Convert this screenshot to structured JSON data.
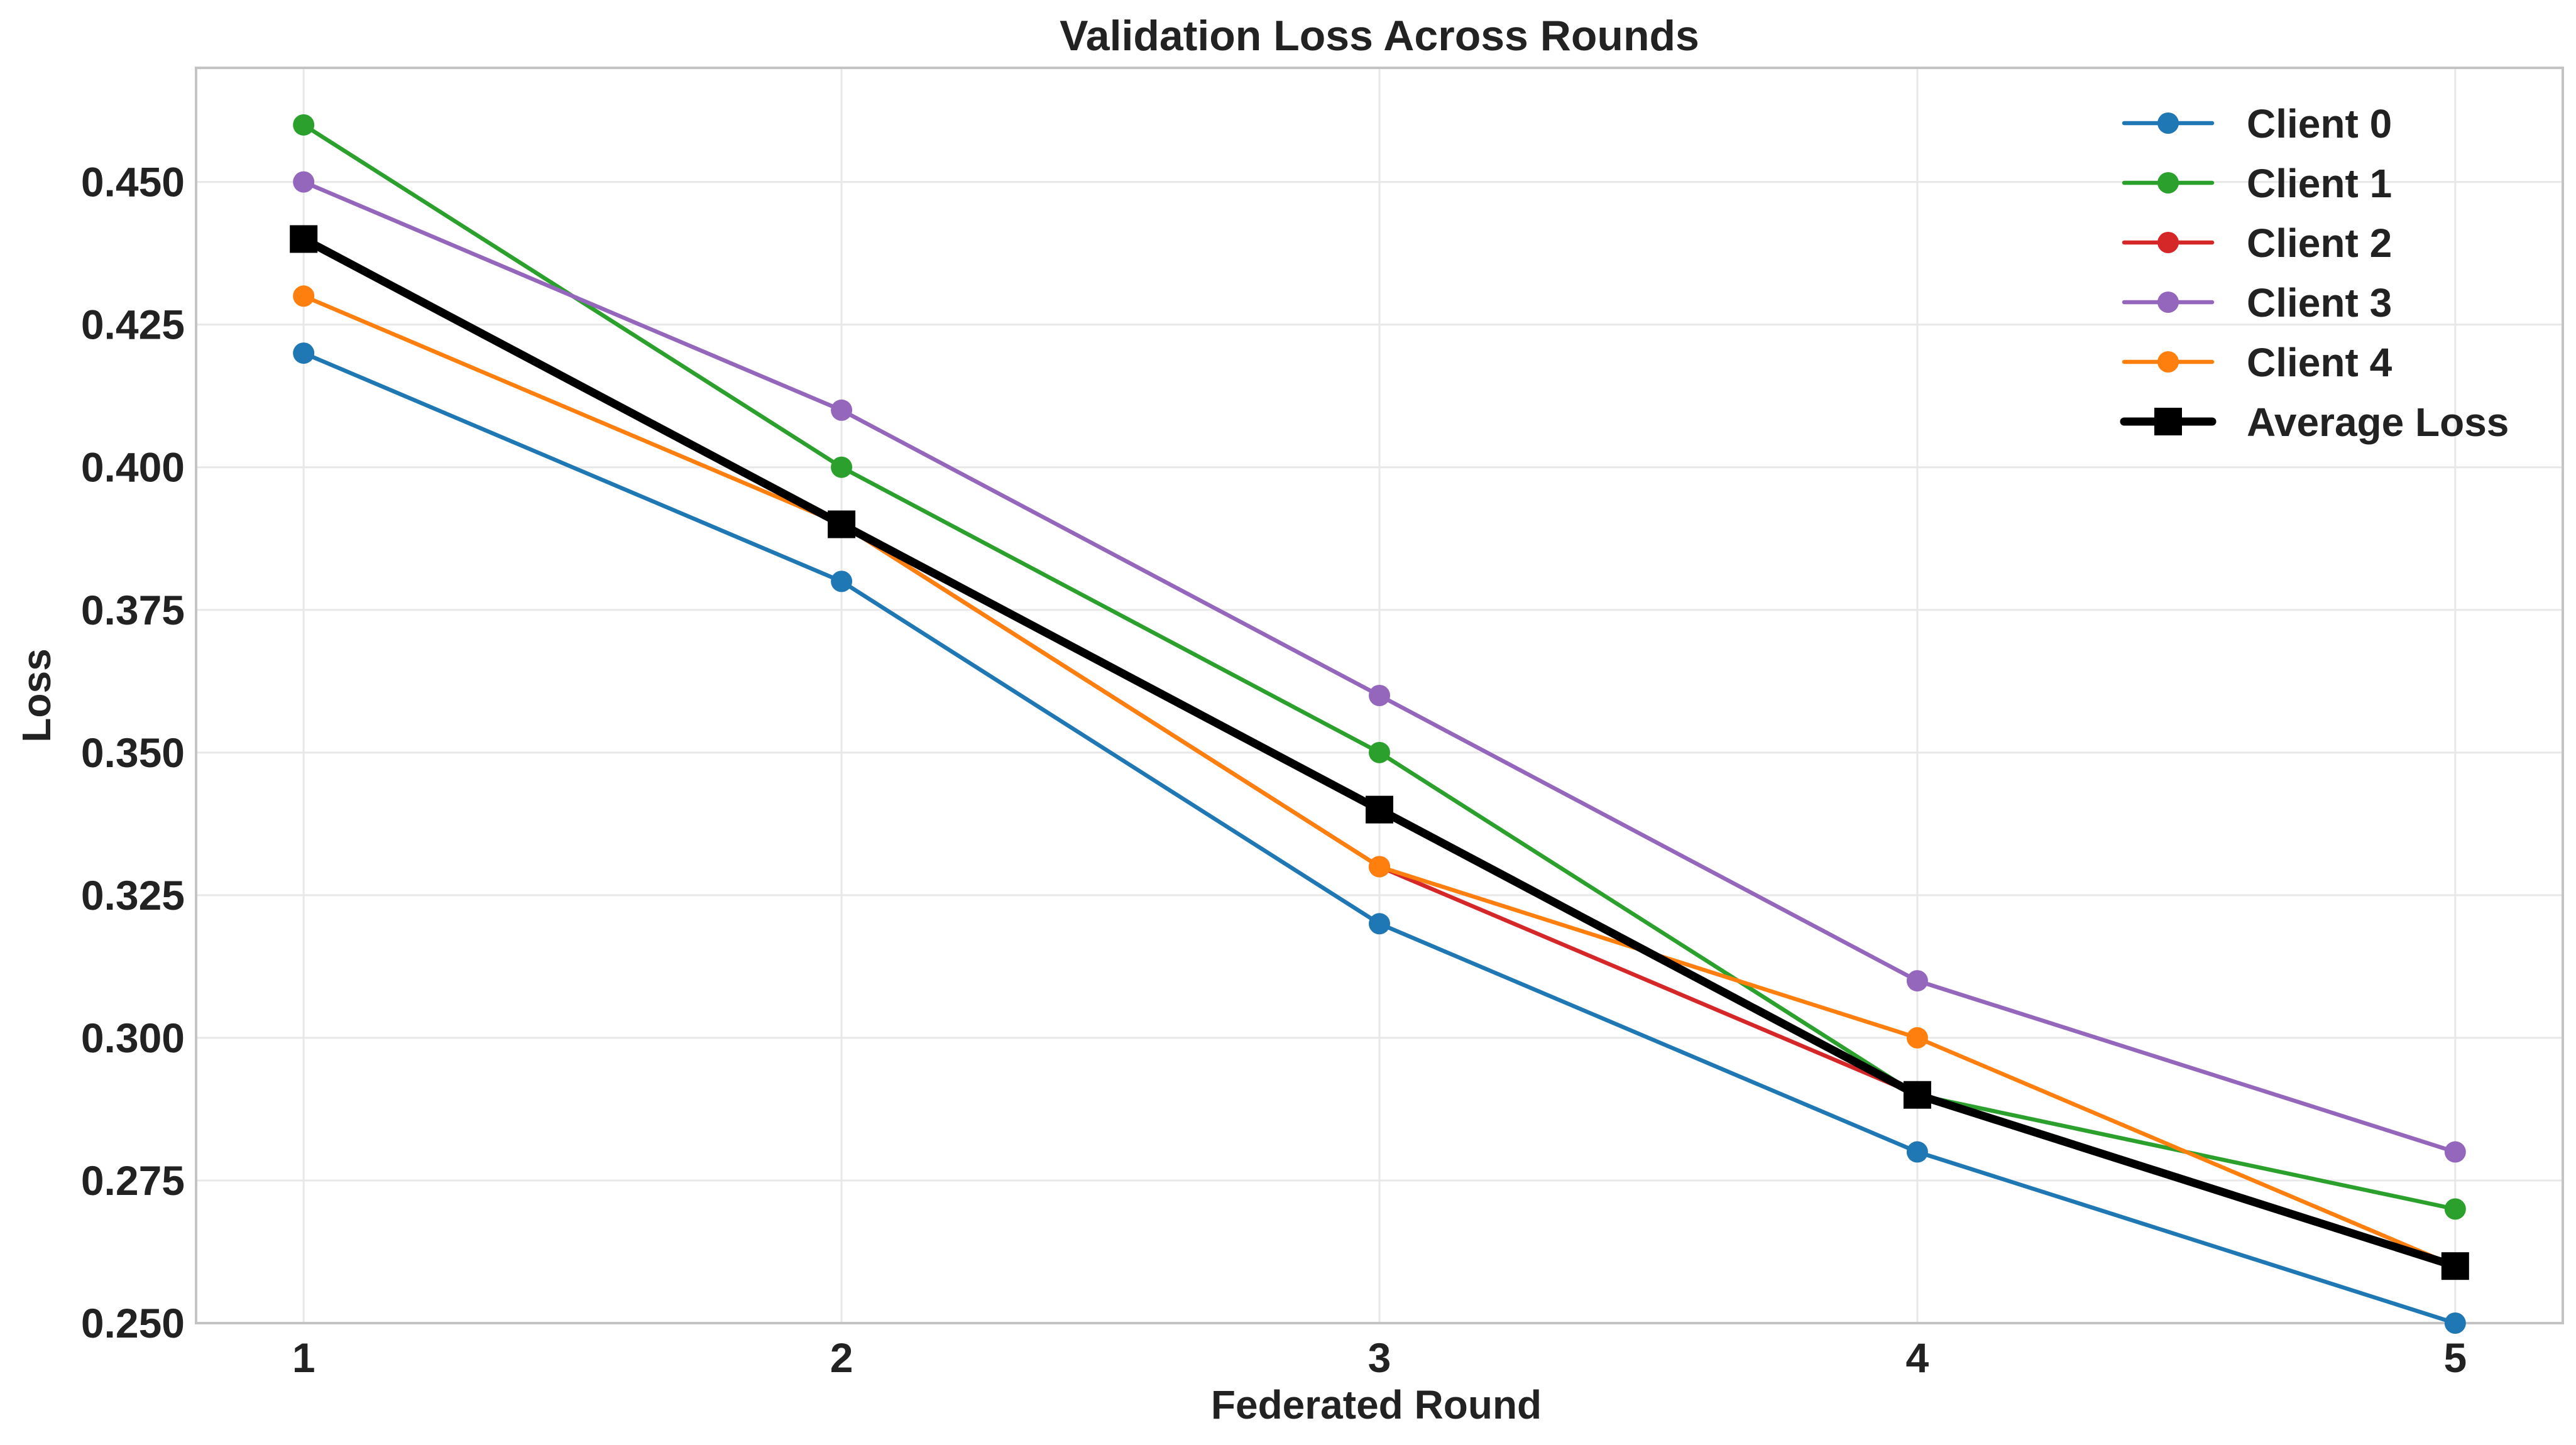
{
  "chart_data": {
    "type": "line",
    "title": "Validation Loss Across Rounds",
    "xlabel": "Federated Round",
    "ylabel": "Loss",
    "x": [
      1,
      2,
      3,
      4,
      5
    ],
    "x_ticks": [
      "1",
      "2",
      "3",
      "4",
      "5"
    ],
    "xlim": [
      0.8,
      5.2
    ],
    "ylim": [
      0.25,
      0.47
    ],
    "y_ticks": [
      "0.250",
      "0.275",
      "0.300",
      "0.325",
      "0.350",
      "0.375",
      "0.400",
      "0.425",
      "0.450"
    ],
    "grid": true,
    "legend_position": "top-right",
    "series": [
      {
        "name": "Client 0",
        "color": "#1f77b4",
        "marker": "circle",
        "values": [
          0.42,
          0.38,
          0.32,
          0.28,
          0.25
        ]
      },
      {
        "name": "Client 1",
        "color": "#2ca02c",
        "marker": "circle",
        "values": [
          0.46,
          0.4,
          0.35,
          0.29,
          0.27
        ]
      },
      {
        "name": "Client 2",
        "color": "#d62728",
        "marker": "circle",
        "values": [
          0.44,
          0.39,
          0.33,
          0.29,
          0.26
        ]
      },
      {
        "name": "Client 3",
        "color": "#9467bd",
        "marker": "circle",
        "values": [
          0.45,
          0.41,
          0.36,
          0.31,
          0.28
        ]
      },
      {
        "name": "Client 4",
        "color": "#ff7f0e",
        "marker": "circle",
        "values": [
          0.43,
          0.39,
          0.33,
          0.3,
          0.26
        ]
      },
      {
        "name": "Average Loss",
        "color": "#000000",
        "marker": "square",
        "values": [
          0.44,
          0.39,
          0.34,
          0.29,
          0.26
        ]
      }
    ]
  }
}
